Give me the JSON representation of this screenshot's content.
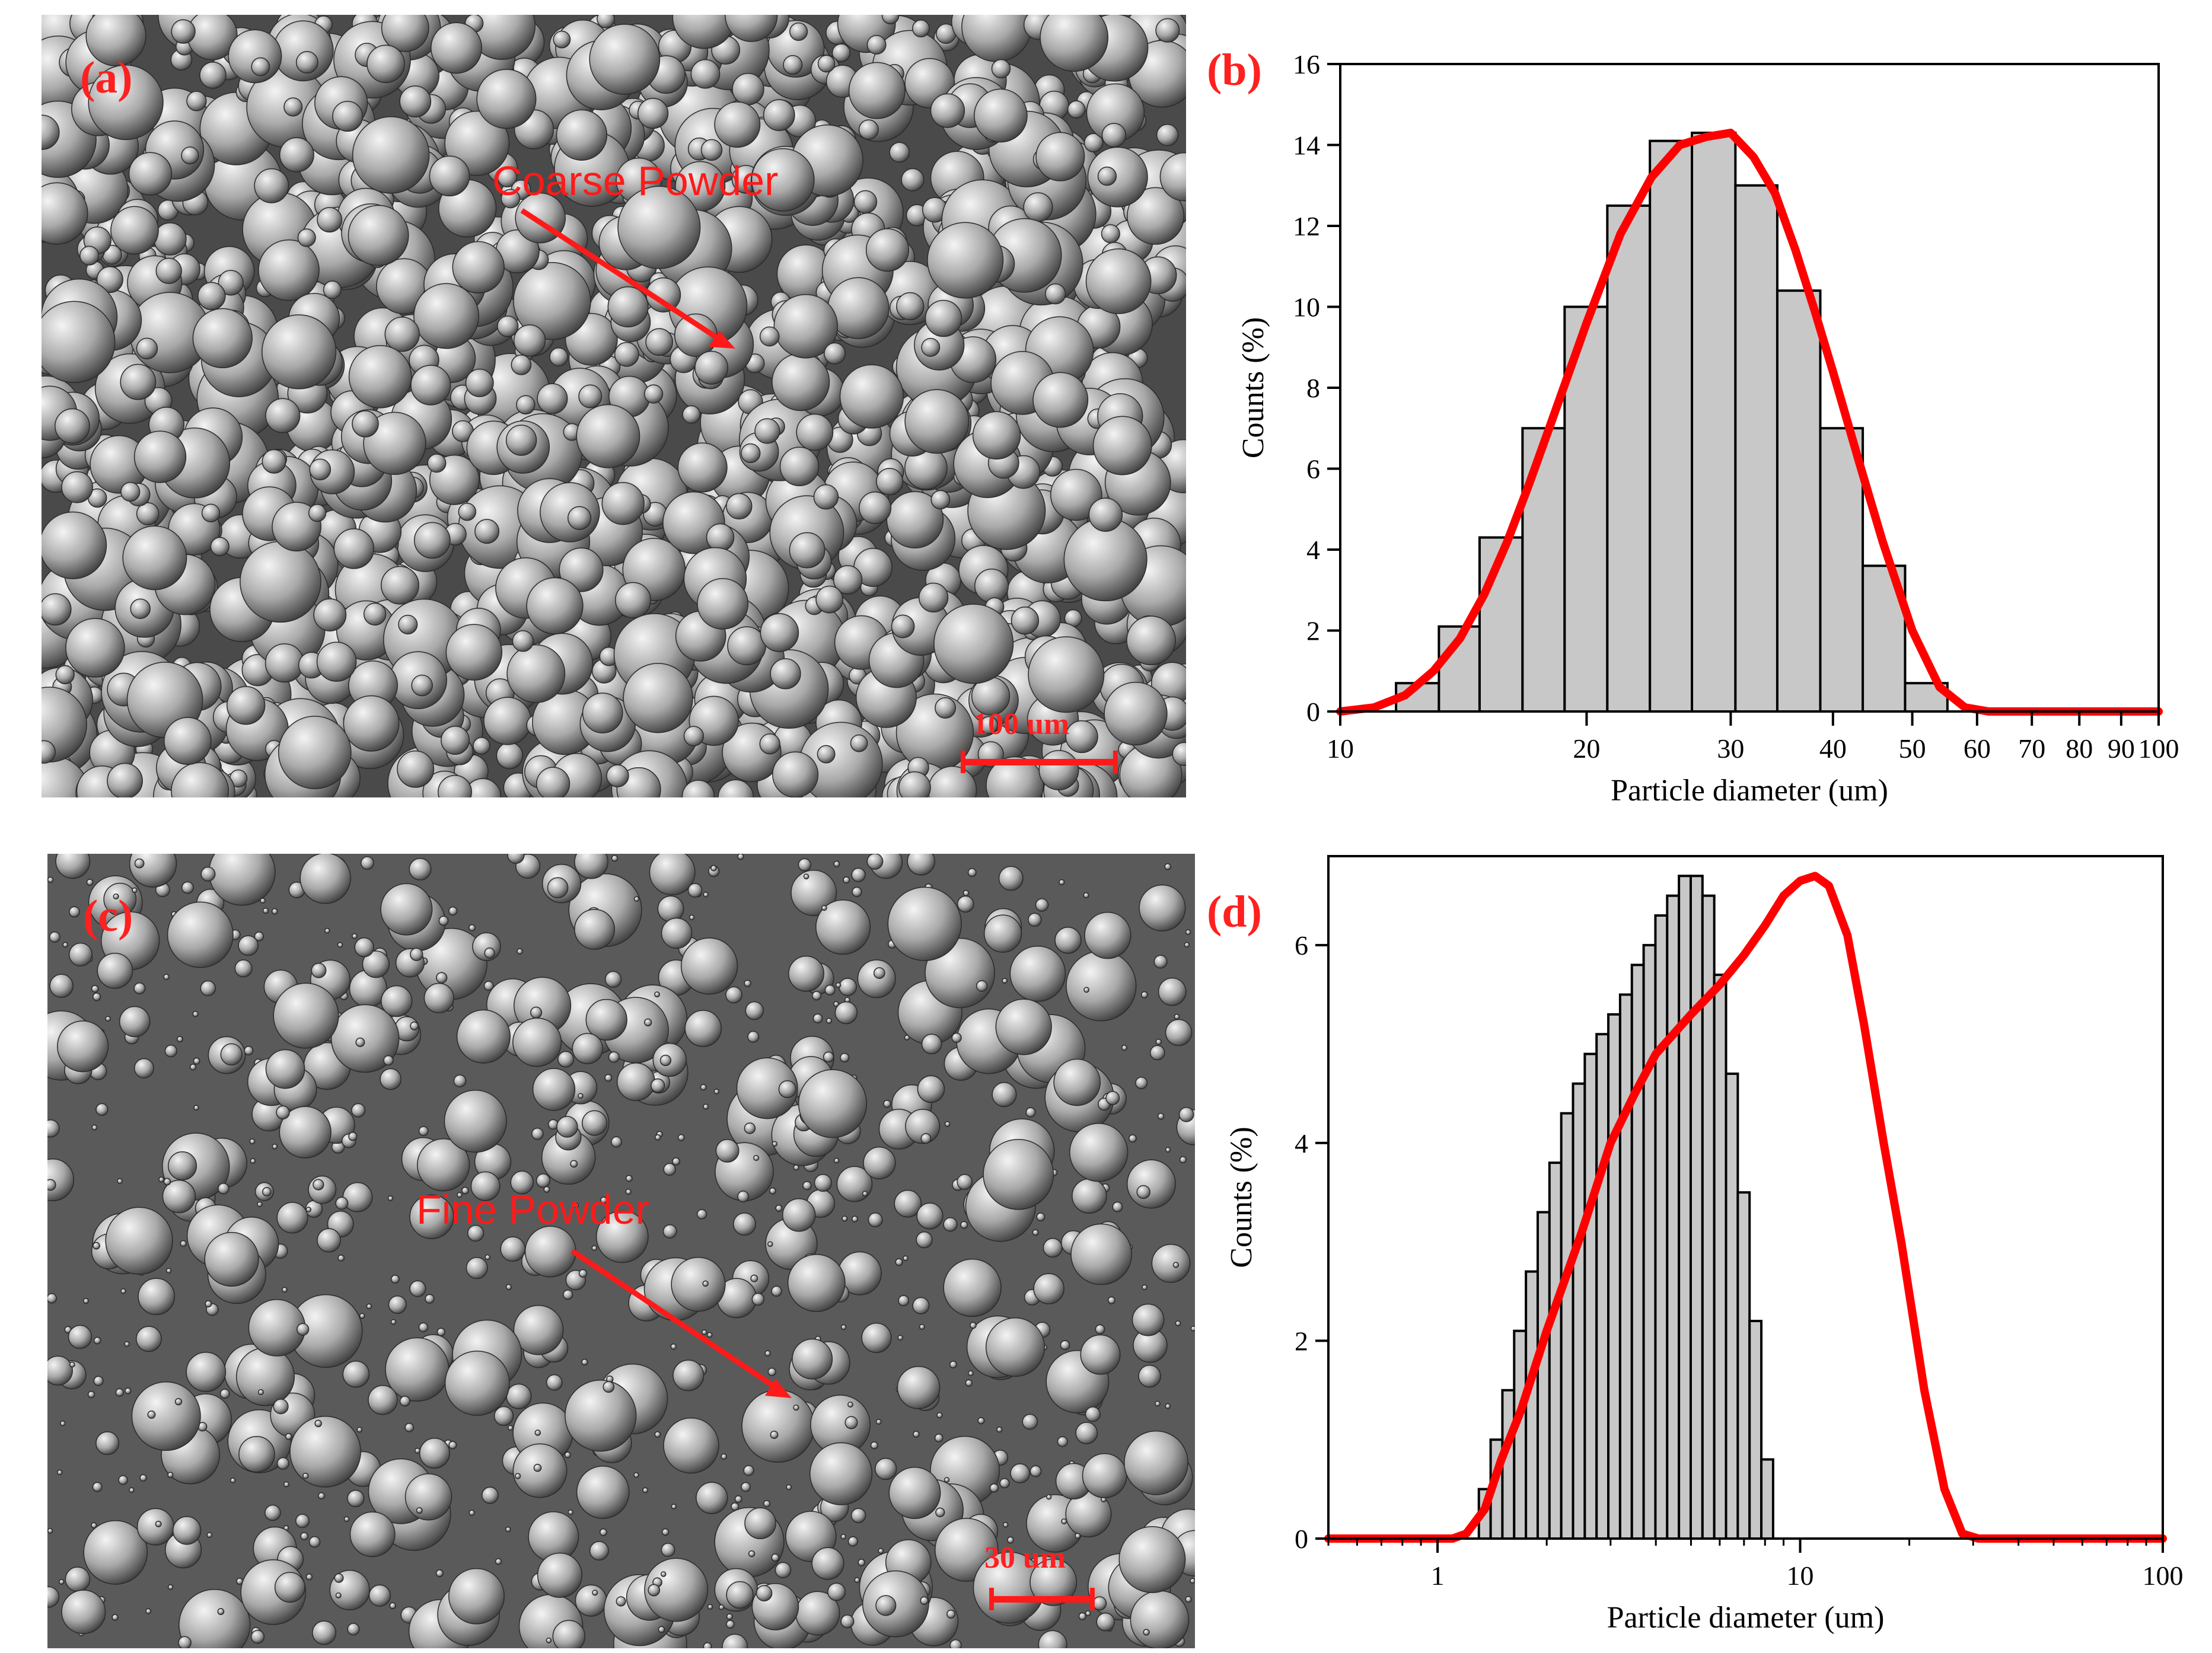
{
  "colors": {
    "curve": "#ff0000",
    "bar_fill": "#c8c8c8",
    "bar_edge": "#000000",
    "annotation": "#ff1a1a"
  },
  "panels": {
    "a": {
      "label": "(a)",
      "annotation": "Coarse Powder",
      "scale_bar": "100 um"
    },
    "c": {
      "label": "(c)",
      "annotation": "Fine Powder",
      "scale_bar": "30 um"
    }
  },
  "chart_data": [
    {
      "panel_label": "(b)",
      "type": "bar",
      "xscale": "log",
      "xlabel": "Particle diameter (um)",
      "ylabel": "Counts (%)",
      "xlim": [
        10,
        100
      ],
      "ylim": [
        0,
        16
      ],
      "xticks": [
        10,
        20,
        30,
        40,
        50,
        60,
        70,
        80,
        90,
        100
      ],
      "yticks": [
        0,
        2,
        4,
        6,
        8,
        10,
        12,
        14,
        16
      ],
      "bars": [
        {
          "left": 11.7,
          "right": 13.2,
          "value": 0.7
        },
        {
          "left": 13.2,
          "right": 14.8,
          "value": 2.1
        },
        {
          "left": 14.8,
          "right": 16.7,
          "value": 4.3
        },
        {
          "left": 16.7,
          "right": 18.8,
          "value": 7.0
        },
        {
          "left": 18.8,
          "right": 21.2,
          "value": 10.0
        },
        {
          "left": 21.2,
          "right": 23.9,
          "value": 12.5
        },
        {
          "left": 23.9,
          "right": 26.9,
          "value": 14.1
        },
        {
          "left": 26.9,
          "right": 30.4,
          "value": 14.3
        },
        {
          "left": 30.4,
          "right": 34.2,
          "value": 13.0
        },
        {
          "left": 34.2,
          "right": 38.6,
          "value": 10.4
        },
        {
          "left": 38.6,
          "right": 43.5,
          "value": 7.0
        },
        {
          "left": 43.5,
          "right": 49.0,
          "value": 3.6
        },
        {
          "left": 49.0,
          "right": 55.2,
          "value": 0.7
        }
      ],
      "fit_curve": {
        "x": [
          10,
          11,
          12,
          13,
          14,
          15,
          16,
          17,
          18,
          20,
          22,
          24,
          26,
          28,
          30,
          32,
          34,
          36,
          38,
          40,
          43,
          46,
          50,
          54,
          58,
          62,
          66,
          70,
          80,
          90,
          100
        ],
        "y": [
          0,
          0.1,
          0.4,
          1.0,
          1.8,
          2.9,
          4.2,
          5.6,
          7.0,
          9.6,
          11.8,
          13.2,
          14.0,
          14.2,
          14.3,
          13.7,
          12.8,
          11.4,
          9.9,
          8.4,
          6.2,
          4.2,
          2.0,
          0.6,
          0.1,
          0,
          0,
          0,
          0,
          0,
          0
        ]
      },
      "grid": false,
      "legend": "none"
    },
    {
      "panel_label": "(d)",
      "type": "bar",
      "xscale": "log",
      "xlabel": "Particle diameter (um)",
      "ylabel": "Counts (%)",
      "xlim": [
        0.5,
        100
      ],
      "ylim": [
        0,
        6.9
      ],
      "xticks": [
        1,
        10,
        100
      ],
      "yticks": [
        0,
        2,
        4,
        6
      ],
      "bins": {
        "start": 1.3,
        "ratio": 1.0776
      },
      "values": [
        0.5,
        1.0,
        1.5,
        2.1,
        2.7,
        3.3,
        3.8,
        4.3,
        4.6,
        4.9,
        5.1,
        5.3,
        5.5,
        5.8,
        6.0,
        6.3,
        6.5,
        6.7,
        6.7,
        6.5,
        5.7,
        4.7,
        3.5,
        2.2,
        0.8
      ],
      "fit_curve": {
        "x": [
          0.5,
          0.8,
          1.1,
          1.2,
          1.35,
          1.5,
          1.7,
          2.0,
          2.5,
          3.0,
          3.5,
          4.0,
          5.0,
          6.0,
          7.0,
          8.0,
          9.0,
          10.0,
          11.0,
          12.0,
          13.5,
          15.0,
          17.0,
          19.0,
          22.0,
          25.0,
          28.0,
          31.0,
          33.0,
          40.0,
          60.0,
          100.0
        ],
        "y": [
          0,
          0,
          0,
          0.05,
          0.3,
          0.8,
          1.3,
          2.1,
          3.1,
          4.0,
          4.5,
          4.9,
          5.3,
          5.6,
          5.9,
          6.2,
          6.5,
          6.65,
          6.7,
          6.6,
          6.1,
          5.2,
          4.0,
          3.0,
          1.5,
          0.5,
          0.05,
          0,
          0,
          0,
          0,
          0
        ]
      },
      "grid": false,
      "legend": "none"
    }
  ]
}
